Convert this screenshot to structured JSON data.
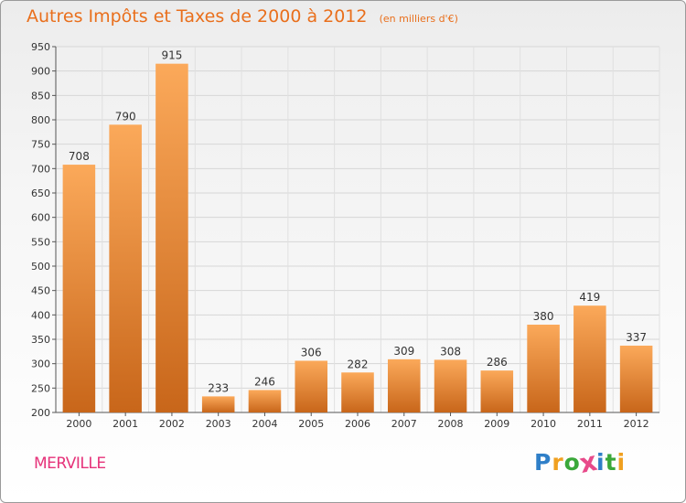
{
  "header": {
    "title": "Autres Impôts et Taxes de 2000 à 2012",
    "unit": "(en milliers d'€)"
  },
  "footer": {
    "city": "MERVILLE",
    "logo_letters": [
      "P",
      "r",
      "o",
      "x",
      "i",
      "t",
      "i"
    ],
    "logo_colors": [
      "#2f7fc8",
      "#f0a020",
      "#3aa83a",
      "#e84a8a",
      "#2f7fc8",
      "#3aa83a",
      "#f0a020"
    ]
  },
  "colors": {
    "bar_light": "#fba95a",
    "bar_dark": "#c8661a",
    "accent": "#e96f1c",
    "city": "#e6337a"
  },
  "chart_data": {
    "type": "bar",
    "title": "Autres Impôts et Taxes de 2000 à 2012",
    "categories": [
      "2000",
      "2001",
      "2002",
      "2003",
      "2004",
      "2005",
      "2006",
      "2007",
      "2008",
      "2009",
      "2010",
      "2011",
      "2012"
    ],
    "values": [
      708,
      790,
      915,
      233,
      246,
      306,
      282,
      309,
      308,
      286,
      380,
      419,
      337
    ],
    "ylim": [
      200,
      950
    ],
    "yticks": [
      200,
      250,
      300,
      350,
      400,
      450,
      500,
      550,
      600,
      650,
      700,
      750,
      800,
      850,
      900,
      950
    ],
    "grid": true,
    "xlabel": "",
    "ylabel": ""
  }
}
